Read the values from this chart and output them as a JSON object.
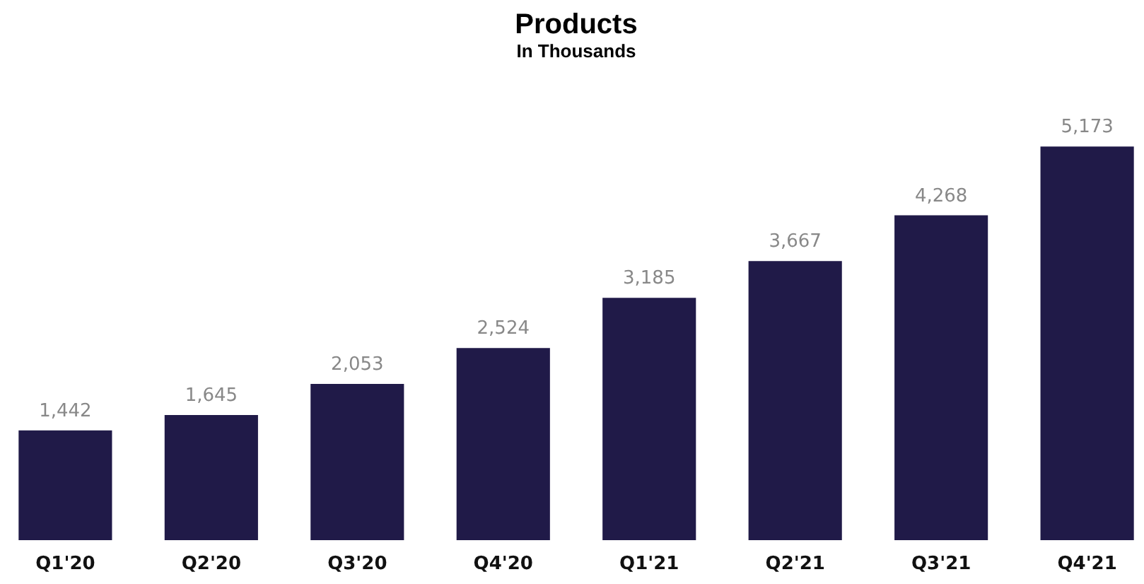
{
  "chart_data": {
    "type": "bar",
    "title": "Products",
    "subtitle": "In Thousands",
    "categories": [
      "Q1'20",
      "Q2'20",
      "Q3'20",
      "Q4'20",
      "Q1'21",
      "Q2'21",
      "Q3'21",
      "Q4'21"
    ],
    "values": [
      1442,
      1645,
      2053,
      2524,
      3185,
      3667,
      4268,
      5173
    ],
    "color": "#201a48",
    "value_labels": [
      "1,442",
      "1,645",
      "2,053",
      "2,524",
      "3,185",
      "3,667",
      "4,268",
      "5,173"
    ]
  }
}
